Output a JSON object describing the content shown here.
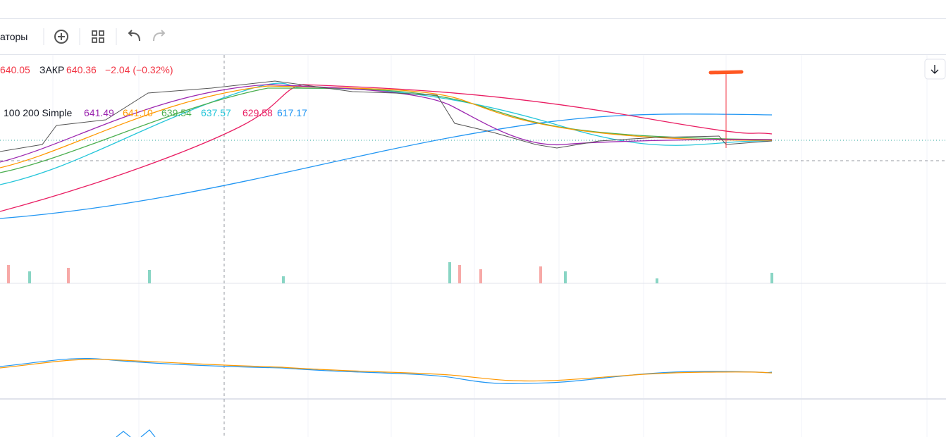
{
  "toolbar": {
    "indicators_label": "аторы"
  },
  "legend": {
    "open_value": "640.05",
    "close_label": "ЗАКР",
    "close_value": "640.36",
    "change": "−2.04 (−0.32%)",
    "ma_label": "100 200 Simple",
    "ma_values": [
      "641.49",
      "641.10",
      "639.54",
      "637.57",
      "629.58",
      "617.17"
    ]
  }
}
